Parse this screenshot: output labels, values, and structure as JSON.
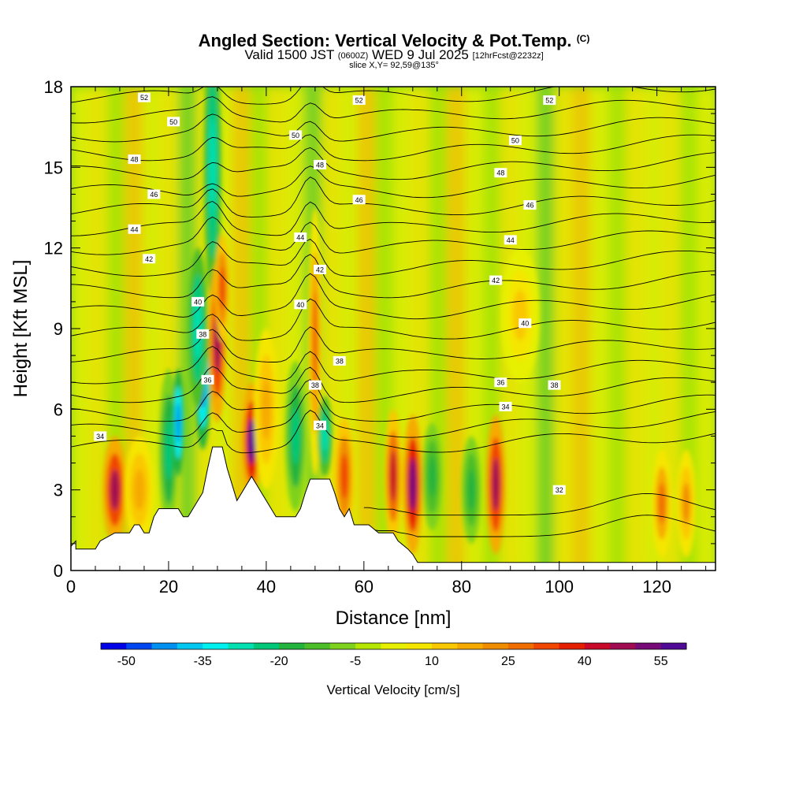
{
  "title": {
    "main": "Angled Section: Vertical Velocity & Pot.Temp.",
    "copyright": "(C)",
    "valid_a": "Valid 1500 JST",
    "valid_z": "(0600Z)",
    "valid_b": "WED 9 Jul 2025",
    "forecast": "[12hrFcst@2232z]",
    "slice": "slice X,Y= 92,59@135°"
  },
  "colors": {
    "scale": [
      "#0000e6",
      "#0046f0",
      "#0090f0",
      "#00c8f0",
      "#00f0f0",
      "#00e0b0",
      "#00c878",
      "#22b43c",
      "#4cbe28",
      "#7ed21e",
      "#b4e600",
      "#e6f000",
      "#f5e600",
      "#fac800",
      "#f6aa00",
      "#f08c00",
      "#f06e00",
      "#f04600",
      "#e61e00",
      "#c80a28",
      "#a00a50",
      "#780a78",
      "#500a96"
    ],
    "terrain": "#ffffff",
    "contour": "#000000"
  },
  "chart_data": {
    "type": "heatmap",
    "xlabel": "Distance [nm]",
    "ylabel": "Height [Kft MSL]",
    "xlim": [
      0,
      132
    ],
    "ylim": [
      0,
      18
    ],
    "xticks": [
      "0",
      "20",
      "40",
      "60",
      "80",
      "100",
      "120"
    ],
    "yticks": [
      "0",
      "3",
      "6",
      "9",
      "12",
      "15",
      "18"
    ],
    "colorbar": {
      "label": "Vertical Velocity [cm/s]",
      "min": -55,
      "max": 60,
      "step": 5,
      "tick_labels": [
        "-50",
        "-35",
        "-20",
        "-5",
        "10",
        "25",
        "40",
        "55"
      ]
    },
    "terrain": [
      [
        0,
        0.9
      ],
      [
        1,
        1.1
      ],
      [
        1,
        0.8
      ],
      [
        5,
        0.8
      ],
      [
        6,
        1.1
      ],
      [
        9,
        1.4
      ],
      [
        12,
        1.4
      ],
      [
        13,
        1.7
      ],
      [
        14,
        1.7
      ],
      [
        15,
        1.4
      ],
      [
        16,
        1.4
      ],
      [
        17,
        2.0
      ],
      [
        18,
        2.3
      ],
      [
        22,
        2.3
      ],
      [
        23,
        2.0
      ],
      [
        24,
        2.0
      ],
      [
        25,
        2.3
      ],
      [
        26,
        2.6
      ],
      [
        27,
        2.9
      ],
      [
        28,
        3.8
      ],
      [
        29,
        4.6
      ],
      [
        31,
        4.6
      ],
      [
        32,
        3.8
      ],
      [
        33,
        3.2
      ],
      [
        34,
        2.6
      ],
      [
        35,
        2.9
      ],
      [
        36,
        3.2
      ],
      [
        37,
        3.5
      ],
      [
        38,
        3.2
      ],
      [
        39,
        2.9
      ],
      [
        40,
        2.6
      ],
      [
        41,
        2.3
      ],
      [
        42,
        2.0
      ],
      [
        46,
        2.0
      ],
      [
        47,
        2.3
      ],
      [
        48,
        2.9
      ],
      [
        49,
        3.4
      ],
      [
        53,
        3.4
      ],
      [
        54,
        2.9
      ],
      [
        55,
        2.3
      ],
      [
        56,
        2.0
      ],
      [
        57,
        2.3
      ],
      [
        58,
        1.7
      ],
      [
        61,
        1.7
      ],
      [
        63,
        1.4
      ],
      [
        66,
        1.4
      ],
      [
        67,
        1.1
      ],
      [
        69,
        0.8
      ],
      [
        70,
        0.6
      ],
      [
        71,
        0.3
      ],
      [
        132,
        0.3
      ]
    ],
    "contours": [
      {
        "value": "32",
        "label_at": [
          100,
          3.0
        ]
      },
      {
        "value": "34",
        "label_at": [
          6,
          5.0
        ]
      },
      {
        "value": "36",
        "label_at": [
          28,
          7.1
        ]
      },
      {
        "value": "38",
        "label_at": [
          27,
          8.8
        ]
      },
      {
        "value": "40",
        "label_at": [
          26,
          10.0
        ]
      },
      {
        "value": "42",
        "label_at": [
          16,
          11.6
        ]
      },
      {
        "value": "44",
        "label_at": [
          13,
          12.7
        ]
      },
      {
        "value": "46",
        "label_at": [
          17,
          14.0
        ]
      },
      {
        "value": "48",
        "label_at": [
          13,
          15.3
        ]
      },
      {
        "value": "50",
        "label_at": [
          21,
          16.7
        ]
      },
      {
        "value": "52",
        "label_at": [
          15,
          17.6
        ]
      }
    ],
    "extra_contour_labels": [
      {
        "text": "52",
        "at": [
          59,
          17.5
        ]
      },
      {
        "text": "52",
        "at": [
          98,
          17.5
        ]
      },
      {
        "text": "50",
        "at": [
          46,
          16.2
        ]
      },
      {
        "text": "50",
        "at": [
          91,
          16.0
        ]
      },
      {
        "text": "48",
        "at": [
          51,
          15.1
        ]
      },
      {
        "text": "48",
        "at": [
          88,
          14.8
        ]
      },
      {
        "text": "46",
        "at": [
          59,
          13.8
        ]
      },
      {
        "text": "46",
        "at": [
          94,
          13.6
        ]
      },
      {
        "text": "44",
        "at": [
          47,
          12.4
        ]
      },
      {
        "text": "44",
        "at": [
          90,
          12.3
        ]
      },
      {
        "text": "42",
        "at": [
          51,
          11.2
        ]
      },
      {
        "text": "42",
        "at": [
          87,
          10.8
        ]
      },
      {
        "text": "40",
        "at": [
          47,
          9.9
        ]
      },
      {
        "text": "40",
        "at": [
          93,
          9.2
        ]
      },
      {
        "text": "38",
        "at": [
          55,
          7.8
        ]
      },
      {
        "text": "38",
        "at": [
          99,
          6.9
        ]
      },
      {
        "text": "38",
        "at": [
          50,
          6.9
        ]
      },
      {
        "text": "36",
        "at": [
          88,
          7.0
        ]
      },
      {
        "text": "34",
        "at": [
          51,
          5.4
        ]
      },
      {
        "text": "34",
        "at": [
          89,
          6.1
        ]
      }
    ],
    "cells": [
      {
        "x": 9,
        "y": 3.0,
        "w": 2.5,
        "h": 2.0,
        "v": 45
      },
      {
        "x": 14,
        "y": 3.0,
        "w": 3,
        "h": 2,
        "v": 18
      },
      {
        "x": 20,
        "y": 4.5,
        "w": 2,
        "h": 3,
        "v": -25
      },
      {
        "x": 22,
        "y": 5.5,
        "w": 1.2,
        "h": 2,
        "v": -45
      },
      {
        "x": 27,
        "y": 7.0,
        "w": 1.6,
        "h": 2.5,
        "v": -50
      },
      {
        "x": 26,
        "y": 9.0,
        "w": 2,
        "h": 3,
        "v": -30
      },
      {
        "x": 29,
        "y": 15.0,
        "w": 1.8,
        "h": 5,
        "v": -30
      },
      {
        "x": 30,
        "y": 8.5,
        "w": 1.8,
        "h": 3,
        "v": 45
      },
      {
        "x": 31,
        "y": 10.5,
        "w": 1.5,
        "h": 2.0,
        "v": 30
      },
      {
        "x": 37,
        "y": 4.8,
        "w": 2.0,
        "h": 2.2,
        "v": 55
      },
      {
        "x": 40,
        "y": 6.0,
        "w": 2.5,
        "h": 3,
        "v": 15
      },
      {
        "x": 46,
        "y": 5.0,
        "w": 2.2,
        "h": 2.8,
        "v": -25
      },
      {
        "x": 50,
        "y": 8.5,
        "w": 1.5,
        "h": 5,
        "v": 25
      },
      {
        "x": 52,
        "y": 5.0,
        "w": 1.5,
        "h": 1.5,
        "v": -30
      },
      {
        "x": 56,
        "y": 3.5,
        "w": 2,
        "h": 2.2,
        "v": 30
      },
      {
        "x": 66,
        "y": 3.5,
        "w": 1.8,
        "h": 2.5,
        "v": 40
      },
      {
        "x": 70,
        "y": 3.2,
        "w": 2.0,
        "h": 2.6,
        "v": 50
      },
      {
        "x": 74,
        "y": 3.5,
        "w": 2,
        "h": 2,
        "v": -20
      },
      {
        "x": 82,
        "y": 3.0,
        "w": 2,
        "h": 2,
        "v": -20
      },
      {
        "x": 87,
        "y": 3.2,
        "w": 2.0,
        "h": 2.6,
        "v": 45
      },
      {
        "x": 92,
        "y": 9.5,
        "w": 4,
        "h": 2.5,
        "v": 10
      },
      {
        "x": 121,
        "y": 2.5,
        "w": 2,
        "h": 2,
        "v": 25
      },
      {
        "x": 126,
        "y": 2.5,
        "w": 2,
        "h": 2,
        "v": 20
      }
    ]
  }
}
